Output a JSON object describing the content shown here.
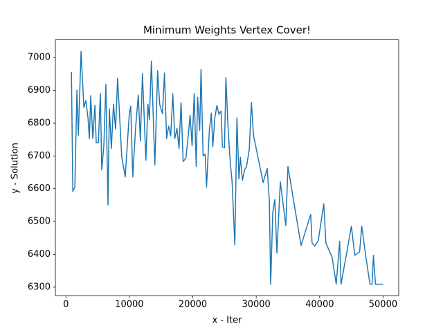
{
  "chart_data": {
    "type": "line",
    "title": "Minimum Weights Vertex Cover!",
    "x_label": "x - Iter",
    "y_label": "y - Solution",
    "color": "#1f77b4",
    "x": [
      870,
      1090,
      1410,
      1740,
      1960,
      2390,
      2830,
      3150,
      3480,
      3700,
      3910,
      4240,
      4570,
      4780,
      5110,
      5430,
      5650,
      5980,
      6300,
      6630,
      6850,
      7170,
      7500,
      7830,
      8150,
      8480,
      8800,
      9350,
      10000,
      10220,
      10540,
      10980,
      11410,
      11740,
      12070,
      12610,
      12930,
      13150,
      13480,
      14020,
      14460,
      14780,
      15220,
      15540,
      15870,
      16200,
      16520,
      16850,
      17170,
      17500,
      17830,
      18150,
      18480,
      18910,
      19240,
      19570,
      19890,
      20220,
      20540,
      20760,
      21090,
      21300,
      21630,
      21960,
      22170,
      22610,
      22930,
      23150,
      23480,
      23800,
      24130,
      24460,
      24670,
      25000,
      25220,
      25540,
      25870,
      26200,
      26630,
      26960,
      27280,
      27500,
      27830,
      28150,
      28480,
      28910,
      29240,
      29570,
      31090,
      31740,
      32070,
      32280,
      32610,
      32930,
      33260,
      33800,
      34670,
      35000,
      37070,
      38590,
      38800,
      39240,
      39780,
      40650,
      40980,
      41960,
      42610,
      43150,
      43370,
      44350,
      45000,
      45540,
      46300,
      46630,
      47280,
      47930,
      48260,
      48480,
      48800,
      50000
    ],
    "values": [
      6956,
      6592,
      6605,
      6901,
      6763,
      7019,
      6848,
      6869,
      6816,
      6753,
      6884,
      6753,
      6854,
      6740,
      6740,
      6890,
      6657,
      6731,
      6918,
      6550,
      6844,
      6723,
      6858,
      6782,
      6937,
      6816,
      6698,
      6636,
      6831,
      6852,
      6636,
      6784,
      6886,
      6746,
      6951,
      6687,
      6858,
      6810,
      6989,
      6672,
      6960,
      6858,
      6829,
      6953,
      6753,
      6791,
      6761,
      6890,
      6753,
      6784,
      6723,
      6863,
      6683,
      6693,
      6753,
      6824,
      6731,
      6890,
      6668,
      6879,
      6778,
      6964,
      6700,
      6706,
      6605,
      6778,
      6831,
      6728,
      6816,
      6854,
      6827,
      6837,
      6728,
      6725,
      6939,
      6795,
      6689,
      6621,
      6429,
      6816,
      6630,
      6696,
      6626,
      6657,
      6668,
      6721,
      6863,
      6763,
      6619,
      6662,
      6563,
      6309,
      6528,
      6567,
      6404,
      6621,
      6488,
      6668,
      6427,
      6522,
      6435,
      6425,
      6442,
      6554,
      6435,
      6391,
      6309,
      6440,
      6309,
      6414,
      6486,
      6397,
      6408,
      6486,
      6393,
      6309,
      6309,
      6397,
      6309,
      6309
    ],
    "xlim": [
      -1660,
      52460
    ],
    "ylim": [
      6274,
      7054
    ],
    "xticks": [
      0,
      10000,
      20000,
      30000,
      40000,
      50000
    ],
    "yticks": [
      6300,
      6400,
      6500,
      6600,
      6700,
      6800,
      6900,
      7000
    ]
  }
}
